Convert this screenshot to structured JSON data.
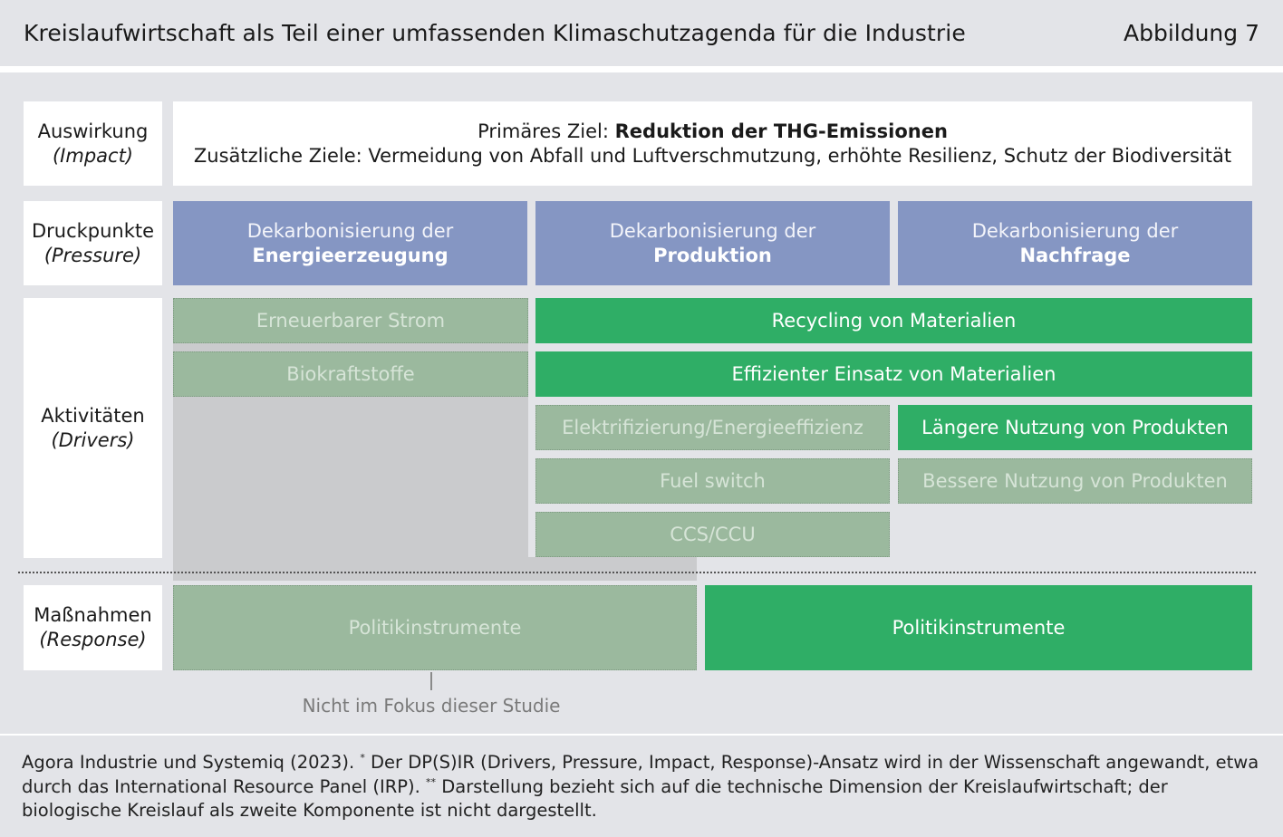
{
  "header": {
    "title": "Kreislaufwirtschaft als Teil einer umfassenden Klimaschutzagenda für die Industrie",
    "figure_number": "Abbildung 7"
  },
  "rows": {
    "impact": {
      "label": "Auswirkung",
      "sub": "(Impact)"
    },
    "pressure": {
      "label": "Druckpunkte",
      "sub": "(Pressure)"
    },
    "drivers": {
      "label": "Aktivitäten",
      "sub": "(Drivers)"
    },
    "response": {
      "label": "Maßnahmen",
      "sub": "(Response)"
    }
  },
  "impact": {
    "primary_prefix": "Primäres Ziel: ",
    "primary_goal": "Reduktion der THG-Emissionen",
    "additional": "Zusätzliche Ziele: Vermeidung von Abfall und Luftverschmutzung, erhöhte Resilienz, Schutz der Biodiversität"
  },
  "pressure": [
    {
      "line1": "Dekarbonisierung der",
      "line2": "Energieerzeugung"
    },
    {
      "line1": "Dekarbonisierung der",
      "line2": "Produktion"
    },
    {
      "line1": "Dekarbonisierung der",
      "line2": "Nachfrage"
    }
  ],
  "drivers": {
    "renewable_power": "Erneuerbarer Strom",
    "biofuels": "Biokraftstoffe",
    "recycling": "Recycling von Materialien",
    "efficient_use": "Effizienter Einsatz von Materialien",
    "electrification": "Elektrifizierung/Energieeffizienz",
    "longer_use": "Längere Nutzung von Produkten",
    "fuel_switch": "Fuel switch",
    "better_use": "Bessere Nutzung von Produkten",
    "ccs": "CCS/CCU"
  },
  "response": {
    "left": "Politikinstrumente",
    "right": "Politikinstrumente"
  },
  "not_in_focus": "Nicht im Fokus dieser Studie",
  "footer": {
    "part1": "Agora Industrie und Systemiq (2023). ",
    "mark1": "*",
    "part2": " Der DP(S)IR (Drivers, Pressure, Impact, Response)-Ansatz wird in der Wissenschaft angewandt, etwa durch das International Resource Panel (IRP). ",
    "mark2": "**",
    "part3": " Darstellung bezieht sich auf die technische Dimension der Kreislaufwirtschaft; der biologische Kreislauf als zweite Komponente ist nicht dargestellt."
  },
  "colors": {
    "background": "#e3e4e8",
    "pressure_blue": "#8596c3",
    "active_green": "#2fae66",
    "faded_green": "#9bb99e",
    "out_of_focus_gray": "#cacbcd"
  }
}
